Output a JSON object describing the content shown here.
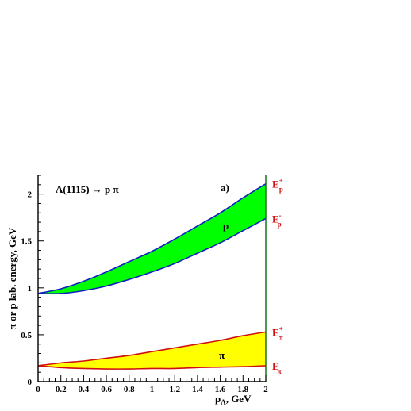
{
  "chart_data": {
    "type": "area",
    "xlabel": "p",
    "xlabel_sub": "Λ",
    "xlabel_suffix": ", GeV",
    "ylabel": "π or p lab. energy, GeV",
    "xlim": [
      0,
      2
    ],
    "ylim": [
      0,
      2.2
    ],
    "x_ticks": [
      "0",
      "0.2",
      "0.4",
      "0.6",
      "0.8",
      "1",
      "1.2",
      "1.4",
      "1.6",
      "1.8",
      "2"
    ],
    "y_ticks": [
      "0",
      "0.5",
      "1",
      "1.5",
      "2"
    ],
    "panel_label": "a)",
    "reaction": "Λ(1115) → p π",
    "reaction_sup": "-",
    "x": [
      0,
      0.2,
      0.4,
      0.6,
      0.8,
      1.0,
      1.2,
      1.4,
      1.6,
      1.8,
      2.0
    ],
    "bands": [
      {
        "name": "p",
        "fill": "#00ff00",
        "edge": "#1020c0",
        "upper": [
          0.94,
          0.99,
          1.07,
          1.17,
          1.28,
          1.39,
          1.52,
          1.66,
          1.8,
          1.96,
          2.11
        ],
        "lower": [
          0.94,
          0.94,
          0.97,
          1.02,
          1.09,
          1.17,
          1.26,
          1.37,
          1.48,
          1.61,
          1.74
        ]
      },
      {
        "name": "π",
        "fill": "#ffff00",
        "edge": "#d01010",
        "upper": [
          0.17,
          0.2,
          0.22,
          0.25,
          0.28,
          0.32,
          0.36,
          0.4,
          0.44,
          0.49,
          0.53
        ],
        "lower": [
          0.17,
          0.15,
          0.14,
          0.135,
          0.135,
          0.14,
          0.14,
          0.15,
          0.155,
          0.16,
          0.17
        ]
      }
    ],
    "right_labels": [
      {
        "base": "E",
        "sub": "p",
        "sup": "+",
        "y": 2.11
      },
      {
        "base": "E",
        "sub": "p",
        "sup": "-",
        "y": 1.74
      },
      {
        "base": "E",
        "sub": "π",
        "sup": "+",
        "y": 0.53
      },
      {
        "base": "E",
        "sub": "π",
        "sup": "-",
        "y": 0.17
      }
    ],
    "grid": false,
    "legend": "none",
    "colors": {
      "label_red": "#d01010",
      "curve_blue": "#1020c0",
      "right_axis": "#0a6a0a"
    }
  }
}
